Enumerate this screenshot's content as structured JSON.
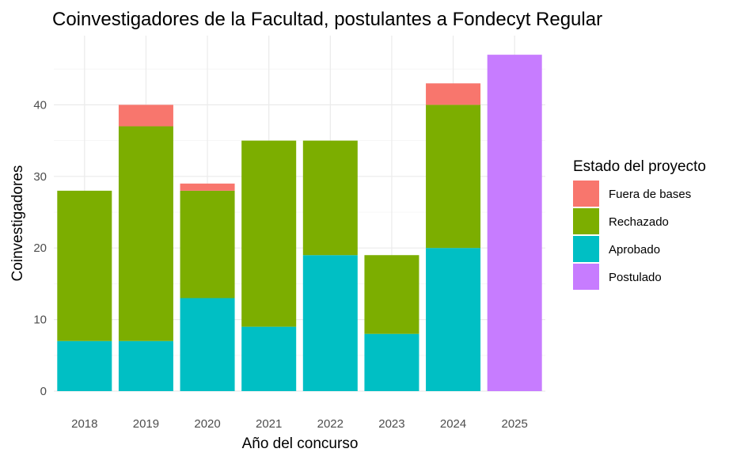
{
  "chart_data": {
    "type": "bar",
    "stacked": true,
    "title": "Coinvestigadores de la Facultad, postulantes a Fondecyt Regular",
    "xlabel": "Año del concurso",
    "ylabel": "Coinvestigadores",
    "categories": [
      "2018",
      "2019",
      "2020",
      "2021",
      "2022",
      "2023",
      "2024",
      "2025"
    ],
    "yticks": [
      "0",
      "10",
      "20",
      "30",
      "40"
    ],
    "ylim": [
      0,
      49
    ],
    "grid": true,
    "legend": {
      "title": "Estado del proyecto",
      "position": "right"
    },
    "series": [
      {
        "name": "Aprobado",
        "color": "#00BFC4",
        "values": [
          7,
          7,
          13,
          9,
          19,
          8,
          20,
          0
        ]
      },
      {
        "name": "Rechazado",
        "color": "#7CAE00",
        "values": [
          21,
          30,
          15,
          26,
          16,
          11,
          20,
          0
        ]
      },
      {
        "name": "Fuera de bases",
        "color": "#F8766D",
        "values": [
          0,
          3,
          1,
          0,
          0,
          0,
          3,
          0
        ]
      },
      {
        "name": "Postulado",
        "color": "#C77CFF",
        "values": [
          0,
          0,
          0,
          0,
          0,
          0,
          0,
          47
        ]
      }
    ],
    "legend_order": [
      "Fuera de bases",
      "Rechazado",
      "Aprobado",
      "Postulado"
    ]
  }
}
